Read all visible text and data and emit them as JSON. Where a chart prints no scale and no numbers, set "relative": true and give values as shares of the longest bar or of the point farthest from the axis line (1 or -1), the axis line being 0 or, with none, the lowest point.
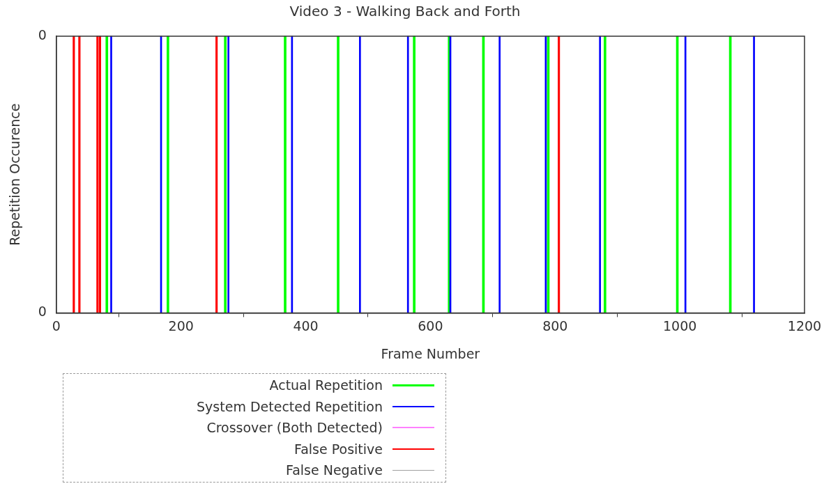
{
  "chart_data": {
    "type": "bar",
    "title": "Video 3 - Walking Back and Forth",
    "xlabel": "Frame Number",
    "ylabel": "Repetition Occurence",
    "xlim": [
      0,
      1200
    ],
    "xticks": [
      0,
      200,
      400,
      600,
      800,
      1000,
      1200
    ],
    "relative": true,
    "annotations": [
      "0",
      "0"
    ],
    "grid": false,
    "legend": "bottom left",
    "series": [
      {
        "name": "Actual Repetition",
        "color": "#00ff00",
        "x": [
          81,
          179,
          271,
          367,
          452,
          574,
          630,
          685,
          789,
          880,
          996,
          1081
        ],
        "values": [
          1,
          1,
          1,
          1,
          1,
          1,
          1,
          1,
          1,
          1,
          1,
          1
        ]
      },
      {
        "name": "System Detected Repetition",
        "color": "#0000ff",
        "x": [
          88,
          168,
          276,
          378,
          487,
          564,
          632,
          711,
          785,
          872,
          1009,
          1119
        ],
        "values": [
          1,
          1,
          1,
          1,
          1,
          1,
          1,
          1,
          1,
          1,
          1,
          1
        ]
      },
      {
        "name": "Crossover (Both Detected)",
        "color": "#ff80ff"
      },
      {
        "name": "False Positive",
        "color": "#ff0000",
        "x": [
          28,
          37,
          66,
          70,
          257,
          806
        ],
        "values": [
          1,
          1,
          1,
          1,
          1,
          1
        ]
      },
      {
        "name": "False Negative",
        "color": "#a0a0a0"
      }
    ]
  }
}
